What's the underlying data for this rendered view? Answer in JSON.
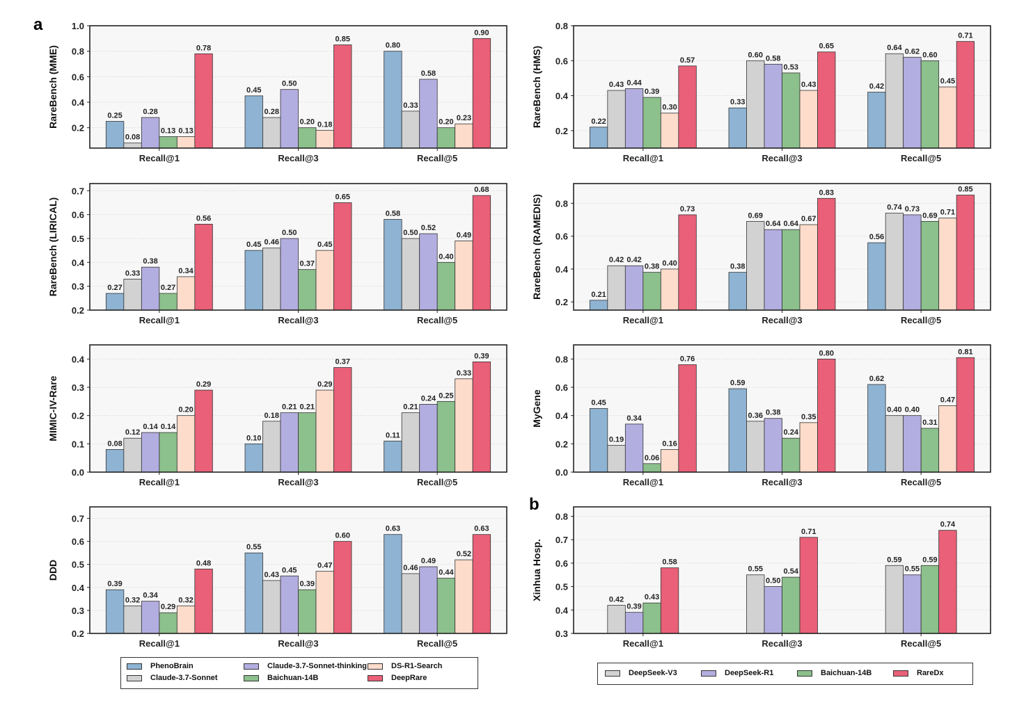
{
  "panel_labels": {
    "a": "a",
    "b": "b"
  },
  "colors": {
    "PhenoBrain": "#8eb3d3",
    "Claude-3.7-Sonnet": "#d2d2d2",
    "Claude-3.7-Sonnet-thinking": "#b3aee0",
    "Baichuan-14B": "#8cc08c",
    "DS-R1-Search": "#fddccb",
    "DeepRare": "#e96078",
    "DeepSeek-V3": "#d2d2d2",
    "DeepSeek-R1": "#b3aee0",
    "RareDx": "#e96078"
  },
  "legend_a": [
    "PhenoBrain",
    "Claude-3.7-Sonnet-thinking",
    "DS-R1-Search",
    "Claude-3.7-Sonnet",
    "Baichuan-14B",
    "DeepRare"
  ],
  "legend_b": [
    "DeepSeek-V3",
    "DeepSeek-R1",
    "Baichuan-14B",
    "RareDx"
  ],
  "chart_data": [
    {
      "type": "bar",
      "panel": "a",
      "ylabel": "RareBench (MME)",
      "categories": [
        "Recall@1",
        "Recall@3",
        "Recall@5"
      ],
      "ylim": [
        0.04,
        1.0
      ],
      "yticks": [
        "0.2",
        "0.4",
        "0.6",
        "0.8",
        "1.0"
      ],
      "series": [
        {
          "name": "PhenoBrain",
          "values": [
            0.25,
            0.45,
            0.8
          ]
        },
        {
          "name": "Claude-3.7-Sonnet",
          "values": [
            0.08,
            0.28,
            0.33
          ]
        },
        {
          "name": "Claude-3.7-Sonnet-thinking",
          "values": [
            0.28,
            0.5,
            0.58
          ]
        },
        {
          "name": "Baichuan-14B",
          "values": [
            0.13,
            0.2,
            0.2
          ]
        },
        {
          "name": "DS-R1-Search",
          "values": [
            0.13,
            0.18,
            0.23
          ]
        },
        {
          "name": "DeepRare",
          "values": [
            0.78,
            0.85,
            0.9
          ]
        }
      ]
    },
    {
      "type": "bar",
      "panel": "a",
      "ylabel": "RareBench (HMS)",
      "categories": [
        "Recall@1",
        "Recall@3",
        "Recall@5"
      ],
      "ylim": [
        0.1,
        0.8
      ],
      "yticks": [
        "0.2",
        "0.4",
        "0.6",
        "0.8"
      ],
      "series": [
        {
          "name": "PhenoBrain",
          "values": [
            0.22,
            0.33,
            0.42
          ]
        },
        {
          "name": "Claude-3.7-Sonnet",
          "values": [
            0.43,
            0.6,
            0.64
          ]
        },
        {
          "name": "Claude-3.7-Sonnet-thinking",
          "values": [
            0.44,
            0.58,
            0.62
          ]
        },
        {
          "name": "Baichuan-14B",
          "values": [
            0.39,
            0.53,
            0.6
          ]
        },
        {
          "name": "DS-R1-Search",
          "values": [
            0.3,
            0.43,
            0.45
          ]
        },
        {
          "name": "DeepRare",
          "values": [
            0.57,
            0.65,
            0.71
          ]
        }
      ]
    },
    {
      "type": "bar",
      "panel": "a",
      "ylabel": "RareBench (LIRICAL)",
      "categories": [
        "Recall@1",
        "Recall@3",
        "Recall@5"
      ],
      "ylim": [
        0.2,
        0.73
      ],
      "yticks": [
        "0.2",
        "0.3",
        "0.4",
        "0.5",
        "0.6",
        "0.7"
      ],
      "series": [
        {
          "name": "PhenoBrain",
          "values": [
            0.27,
            0.45,
            0.58
          ]
        },
        {
          "name": "Claude-3.7-Sonnet",
          "values": [
            0.33,
            0.46,
            0.5
          ]
        },
        {
          "name": "Claude-3.7-Sonnet-thinking",
          "values": [
            0.38,
            0.5,
            0.52
          ]
        },
        {
          "name": "Baichuan-14B",
          "values": [
            0.27,
            0.37,
            0.4
          ]
        },
        {
          "name": "DS-R1-Search",
          "values": [
            0.34,
            0.45,
            0.49
          ]
        },
        {
          "name": "DeepRare",
          "values": [
            0.56,
            0.65,
            0.68
          ]
        }
      ]
    },
    {
      "type": "bar",
      "panel": "a",
      "ylabel": "RareBench (RAMEDIS)",
      "categories": [
        "Recall@1",
        "Recall@3",
        "Recall@5"
      ],
      "ylim": [
        0.15,
        0.92
      ],
      "yticks": [
        "0.2",
        "0.4",
        "0.6",
        "0.8"
      ],
      "series": [
        {
          "name": "PhenoBrain",
          "values": [
            0.21,
            0.38,
            0.56
          ]
        },
        {
          "name": "Claude-3.7-Sonnet",
          "values": [
            0.42,
            0.69,
            0.74
          ]
        },
        {
          "name": "Claude-3.7-Sonnet-thinking",
          "values": [
            0.42,
            0.64,
            0.73
          ]
        },
        {
          "name": "Baichuan-14B",
          "values": [
            0.38,
            0.64,
            0.69
          ]
        },
        {
          "name": "DS-R1-Search",
          "values": [
            0.4,
            0.67,
            0.71
          ]
        },
        {
          "name": "DeepRare",
          "values": [
            0.73,
            0.83,
            0.85
          ]
        }
      ]
    },
    {
      "type": "bar",
      "panel": "a",
      "ylabel": "MIMIC-IV-Rare",
      "categories": [
        "Recall@1",
        "Recall@3",
        "Recall@5"
      ],
      "ylim": [
        0.0,
        0.45
      ],
      "yticks": [
        "0.0",
        "0.1",
        "0.2",
        "0.3",
        "0.4"
      ],
      "series": [
        {
          "name": "PhenoBrain",
          "values": [
            0.08,
            0.1,
            0.11
          ]
        },
        {
          "name": "Claude-3.7-Sonnet",
          "values": [
            0.12,
            0.18,
            0.21
          ]
        },
        {
          "name": "Claude-3.7-Sonnet-thinking",
          "values": [
            0.14,
            0.21,
            0.24
          ]
        },
        {
          "name": "Baichuan-14B",
          "values": [
            0.14,
            0.21,
            0.25
          ]
        },
        {
          "name": "DS-R1-Search",
          "values": [
            0.2,
            0.29,
            0.33
          ]
        },
        {
          "name": "DeepRare",
          "values": [
            0.29,
            0.37,
            0.39
          ]
        }
      ]
    },
    {
      "type": "bar",
      "panel": "a",
      "ylabel": "MyGene",
      "categories": [
        "Recall@1",
        "Recall@3",
        "Recall@5"
      ],
      "ylim": [
        0.0,
        0.9
      ],
      "yticks": [
        "0.0",
        "0.2",
        "0.4",
        "0.6",
        "0.8"
      ],
      "series": [
        {
          "name": "PhenoBrain",
          "values": [
            0.45,
            0.59,
            0.62
          ]
        },
        {
          "name": "Claude-3.7-Sonnet",
          "values": [
            0.19,
            0.36,
            0.4
          ]
        },
        {
          "name": "Claude-3.7-Sonnet-thinking",
          "values": [
            0.34,
            0.38,
            0.4
          ]
        },
        {
          "name": "Baichuan-14B",
          "values": [
            0.06,
            0.24,
            0.31
          ]
        },
        {
          "name": "DS-R1-Search",
          "values": [
            0.16,
            0.35,
            0.47
          ]
        },
        {
          "name": "DeepRare",
          "values": [
            0.76,
            0.8,
            0.81
          ]
        }
      ]
    },
    {
      "type": "bar",
      "panel": "a",
      "ylabel": "DDD",
      "categories": [
        "Recall@1",
        "Recall@3",
        "Recall@5"
      ],
      "ylim": [
        0.2,
        0.75
      ],
      "yticks": [
        "0.2",
        "0.3",
        "0.4",
        "0.5",
        "0.6",
        "0.7"
      ],
      "series": [
        {
          "name": "PhenoBrain",
          "values": [
            0.39,
            0.55,
            0.63
          ]
        },
        {
          "name": "Claude-3.7-Sonnet",
          "values": [
            0.32,
            0.43,
            0.46
          ]
        },
        {
          "name": "Claude-3.7-Sonnet-thinking",
          "values": [
            0.34,
            0.45,
            0.49
          ]
        },
        {
          "name": "Baichuan-14B",
          "values": [
            0.29,
            0.39,
            0.44
          ]
        },
        {
          "name": "DS-R1-Search",
          "values": [
            0.32,
            0.47,
            0.52
          ]
        },
        {
          "name": "DeepRare",
          "values": [
            0.48,
            0.6,
            0.63
          ]
        }
      ]
    },
    {
      "type": "bar",
      "panel": "b",
      "ylabel": "Xinhua Hosp.",
      "categories": [
        "Recall@1",
        "Recall@3",
        "Recall@5"
      ],
      "ylim": [
        0.3,
        0.84
      ],
      "yticks": [
        "0.3",
        "0.4",
        "0.5",
        "0.6",
        "0.7",
        "0.8"
      ],
      "series": [
        {
          "name": "DeepSeek-V3",
          "values": [
            0.42,
            0.55,
            0.59
          ]
        },
        {
          "name": "DeepSeek-R1",
          "values": [
            0.39,
            0.5,
            0.55
          ]
        },
        {
          "name": "Baichuan-14B",
          "values": [
            0.43,
            0.54,
            0.59
          ]
        },
        {
          "name": "RareDx",
          "values": [
            0.58,
            0.71,
            0.74
          ]
        }
      ]
    }
  ]
}
